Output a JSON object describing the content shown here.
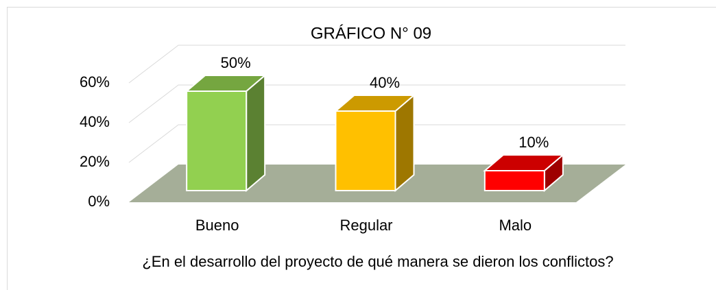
{
  "chart_data": {
    "type": "bar3d",
    "title": "GRÁFICO N° 09",
    "x_label": "¿En el desarrollo del proyecto de qué manera se dieron los conflictos?",
    "categories": [
      "Bueno",
      "Regular",
      "Malo"
    ],
    "values": [
      50,
      40,
      10
    ],
    "value_labels": [
      "50%",
      "40%",
      "10%"
    ],
    "colors": [
      "#92d050",
      "#ffc000",
      "#ff0000"
    ],
    "ylim": [
      0,
      60
    ],
    "yticks": [
      {
        "value": 0,
        "label": "0%"
      },
      {
        "value": 20,
        "label": "20%"
      },
      {
        "value": 40,
        "label": "40%"
      },
      {
        "value": 60,
        "label": "60%"
      }
    ],
    "grid": true
  }
}
